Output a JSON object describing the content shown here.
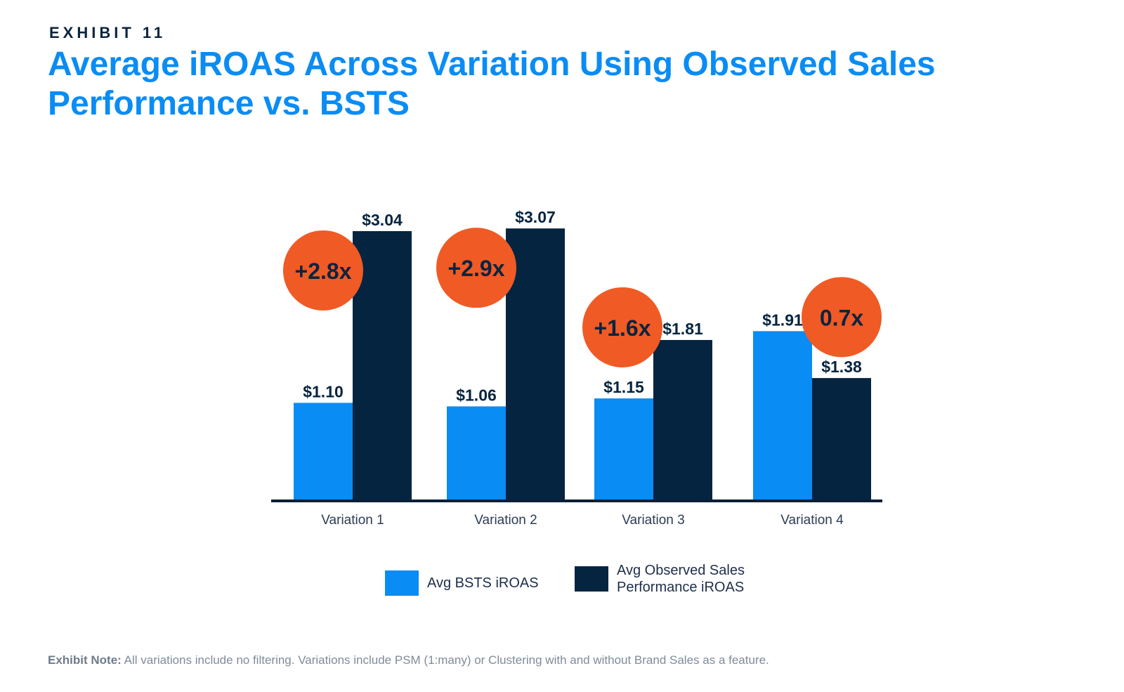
{
  "header": {
    "exhibit": "EXHIBIT 11",
    "title_line1": "Average iROAS Across Variation Using Observed Sales",
    "title_line2": "Performance vs. BSTS"
  },
  "colors": {
    "bsts": "#0a8cf5",
    "observed": "#052440",
    "badge": "#f05a24",
    "badge_text": "#0b2440",
    "axis": "#0b1f36"
  },
  "chart_data": {
    "type": "bar",
    "title": "Average iROAS Across Variation Using Observed Sales Performance vs. BSTS",
    "xlabel": "",
    "ylabel": "",
    "ylim": [
      0,
      3.4
    ],
    "grid": false,
    "categories": [
      "Variation 1",
      "Variation 2",
      "Variation 3",
      "Variation 4"
    ],
    "series": [
      {
        "name": "Avg BSTS iROAS",
        "values": [
          1.1,
          1.06,
          1.15,
          1.91
        ],
        "labels": [
          "$1.10",
          "$1.06",
          "$1.15",
          "$1.91"
        ]
      },
      {
        "name": "Avg Observed Sales Performance iROAS",
        "values": [
          3.04,
          3.07,
          1.81,
          1.38
        ],
        "labels": [
          "$3.04",
          "$3.07",
          "$1.81",
          "$1.38"
        ]
      }
    ],
    "annotations": [
      "+2.8x",
      "+2.9x",
      "+1.6x",
      "0.7x"
    ]
  },
  "legend": {
    "bsts_label": "Avg BSTS iROAS",
    "observed_line1": "Avg Observed Sales",
    "observed_line2": "Performance iROAS"
  },
  "note": {
    "prefix": "Exhibit Note:",
    "text": " All variations include no filtering. Variations include PSM (1:many) or Clustering with and without Brand Sales as a feature."
  }
}
